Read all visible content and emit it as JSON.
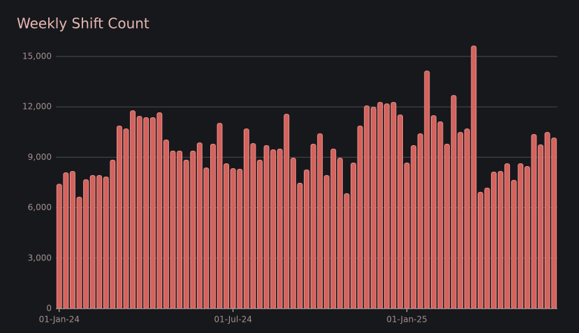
{
  "chart_data": {
    "type": "bar",
    "title": "Weekly Shift Count",
    "categories": [
      "01-Jan-24",
      null,
      null,
      null,
      null,
      null,
      null,
      null,
      null,
      null,
      null,
      null,
      null,
      null,
      null,
      null,
      null,
      null,
      null,
      null,
      null,
      null,
      null,
      null,
      null,
      null,
      "01-Jul-24",
      null,
      null,
      null,
      null,
      null,
      null,
      null,
      null,
      null,
      null,
      null,
      null,
      null,
      null,
      null,
      null,
      null,
      null,
      null,
      null,
      null,
      null,
      null,
      null,
      null,
      "01-Jan-25",
      null,
      null,
      null,
      null,
      null,
      null,
      null,
      null,
      null,
      null,
      null,
      null,
      null,
      null,
      null,
      null,
      null,
      null,
      null,
      null,
      null,
      null
    ],
    "values": [
      7400,
      8080,
      8160,
      6630,
      7670,
      7920,
      7920,
      7830,
      8830,
      10860,
      10690,
      11770,
      11440,
      11360,
      11360,
      11650,
      10030,
      9370,
      9370,
      8830,
      9370,
      9860,
      8370,
      9780,
      11020,
      8620,
      8330,
      8290,
      10690,
      9820,
      8830,
      9700,
      9450,
      9490,
      11560,
      8950,
      7460,
      8250,
      9780,
      10400,
      7920,
      9490,
      8950,
      6840,
      8660,
      10860,
      12060,
      11980,
      12270,
      12180,
      12270,
      11520,
      8660,
      9700,
      10400,
      14130,
      11480,
      11110,
      9780,
      12680,
      10480,
      10690,
      15620,
      6920,
      7170,
      8120,
      8160,
      8620,
      7630,
      8620,
      8450,
      10360,
      9740,
      10480,
      10150
    ],
    "color": "#d4625d",
    "ylim": [
      0,
      15700
    ],
    "yticks": [
      0,
      {
        "value": 3000,
        "label": "3,000"
      },
      {
        "value": 6000,
        "label": "6,000"
      },
      {
        "value": 9000,
        "label": "9,000"
      },
      {
        "value": 12000,
        "label": "12,000"
      },
      {
        "value": 15000,
        "label": "15,000"
      }
    ],
    "grid": true
  }
}
